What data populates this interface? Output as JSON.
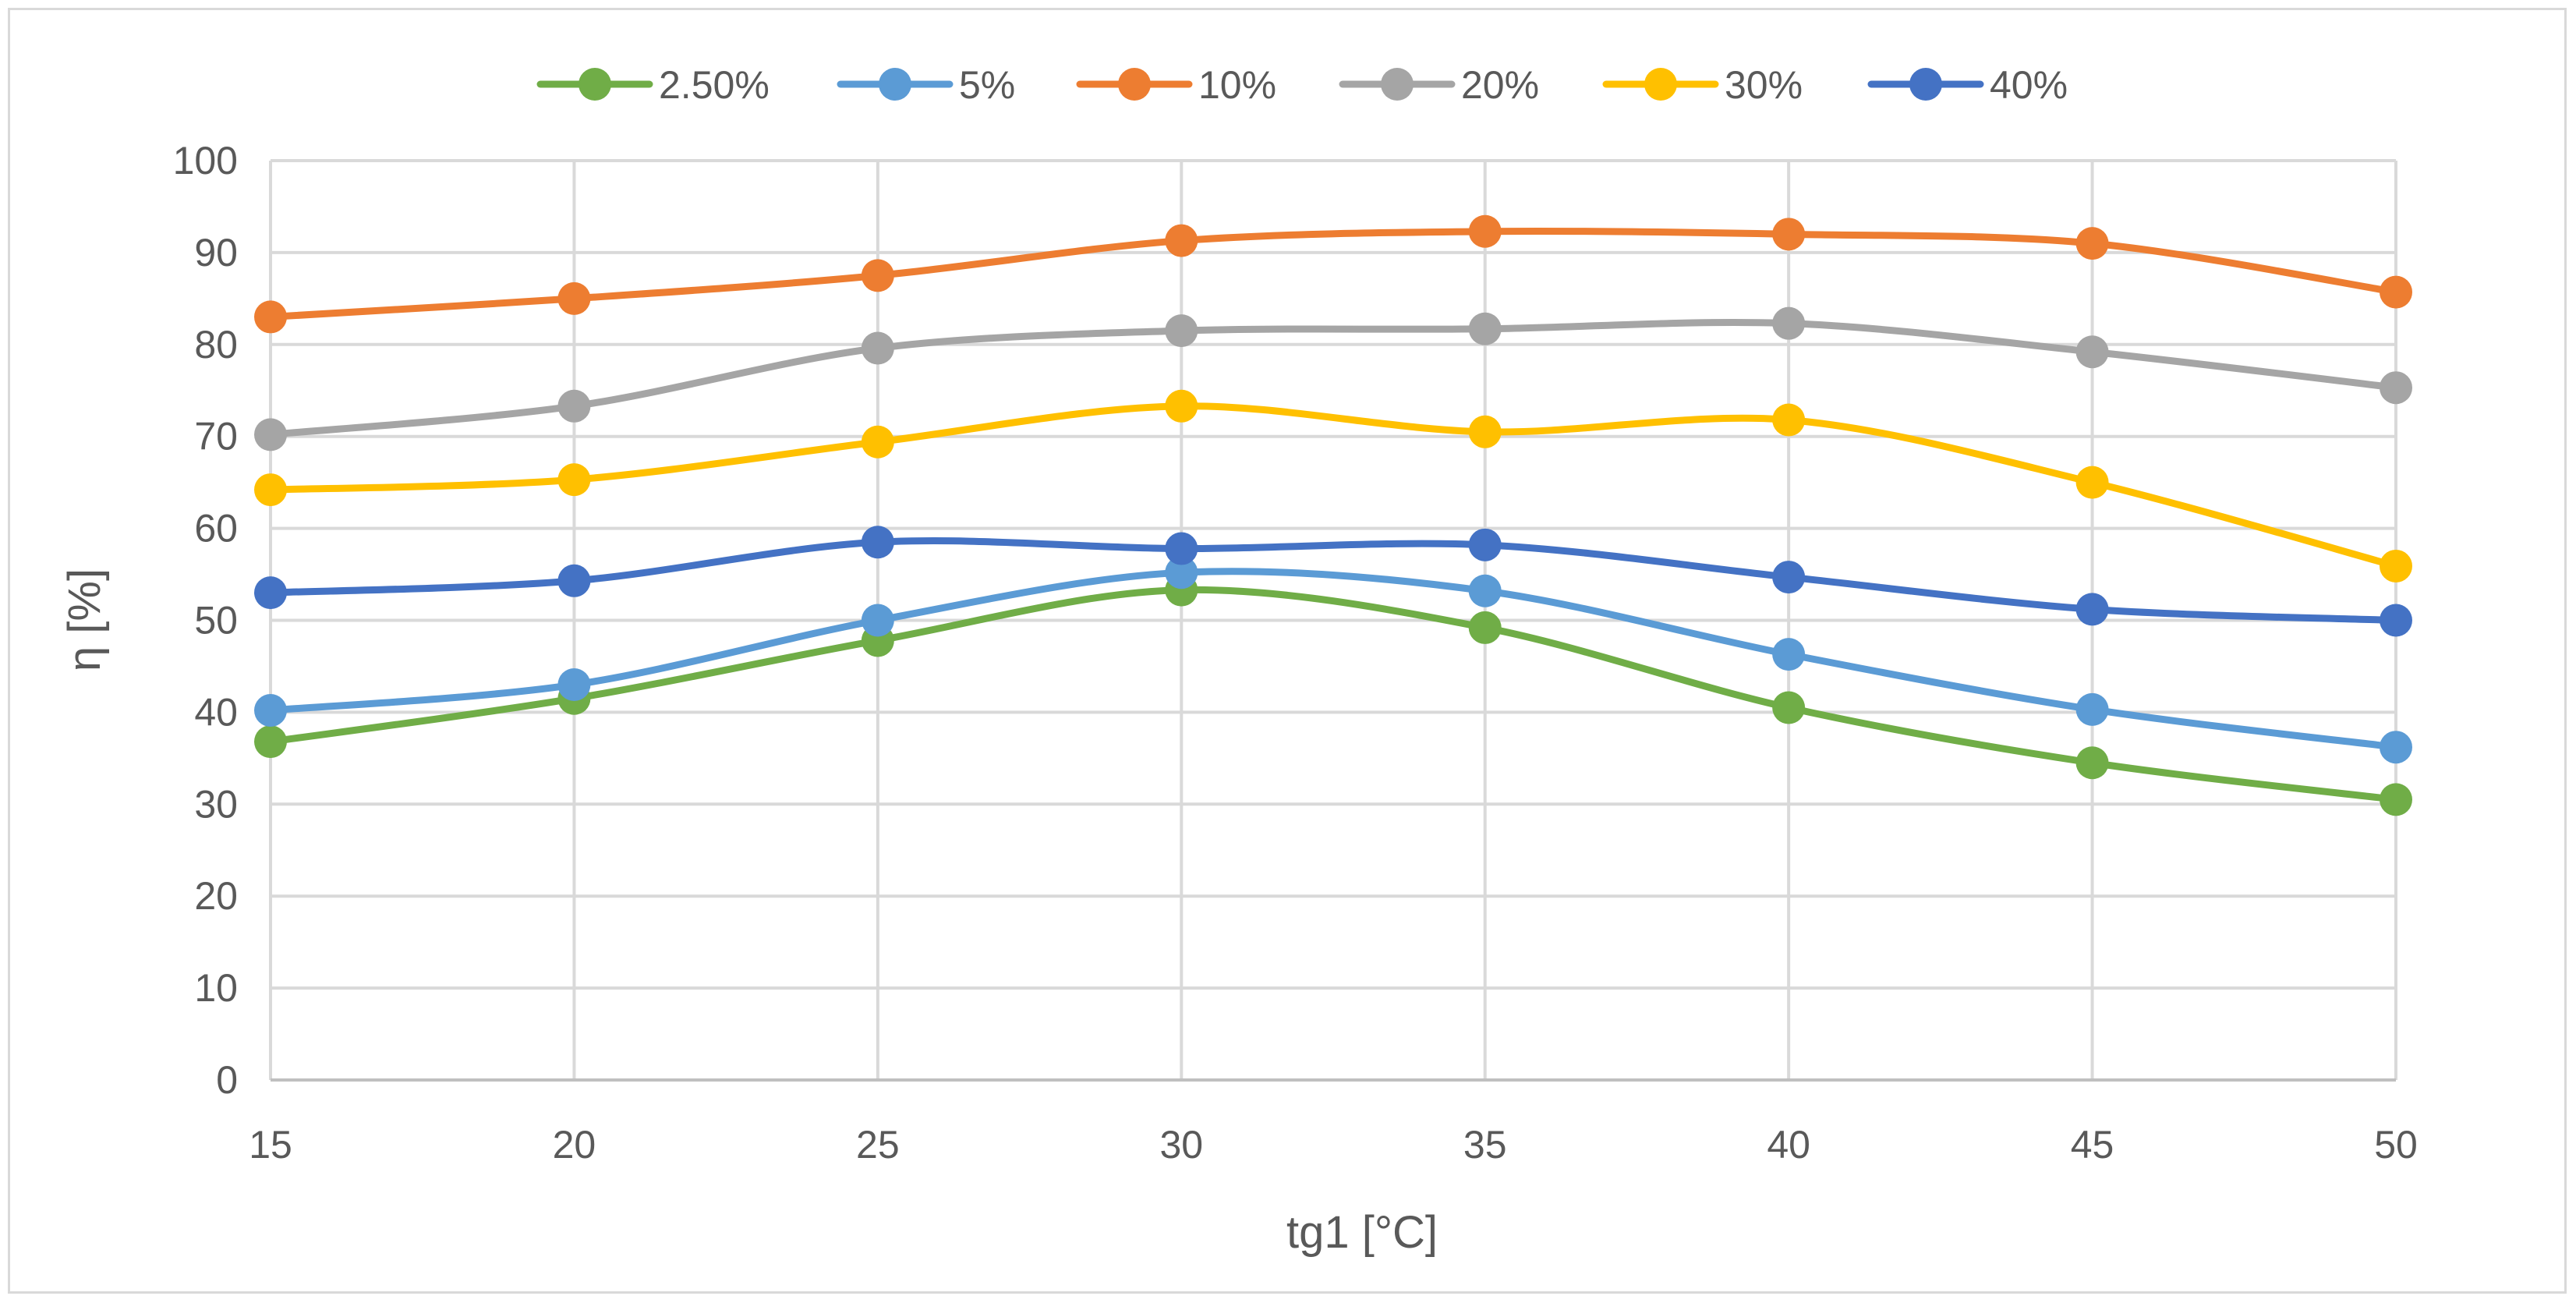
{
  "chart_data": {
    "type": "line",
    "title": "",
    "xlabel": "tg1 [°C]",
    "ylabel": "η [%]",
    "x": [
      15,
      20,
      25,
      30,
      35,
      40,
      45,
      50
    ],
    "xlim": [
      15,
      50
    ],
    "ylim": [
      0,
      100
    ],
    "yticks": [
      0,
      10,
      20,
      30,
      40,
      50,
      60,
      70,
      80,
      90,
      100
    ],
    "grid": true,
    "smooth": true,
    "legend_position": "top",
    "series": [
      {
        "name": "2.50%",
        "color": "#70ad47",
        "values": [
          36.8,
          41.5,
          47.8,
          53.3,
          49.2,
          40.5,
          34.5,
          30.5
        ]
      },
      {
        "name": "5%",
        "color": "#5b9bd5",
        "values": [
          40.2,
          43.0,
          50.0,
          55.2,
          53.2,
          46.3,
          40.3,
          36.2
        ]
      },
      {
        "name": "10%",
        "color": "#ed7d31",
        "values": [
          83.0,
          85.0,
          87.5,
          91.3,
          92.3,
          92.0,
          91.0,
          85.7
        ]
      },
      {
        "name": "20%",
        "color": "#a5a5a5",
        "values": [
          70.2,
          73.3,
          79.6,
          81.5,
          81.7,
          82.3,
          79.2,
          75.3
        ]
      },
      {
        "name": "30%",
        "color": "#ffc000",
        "values": [
          64.2,
          65.3,
          69.4,
          73.3,
          70.5,
          71.8,
          65.0,
          55.9
        ]
      },
      {
        "name": "40%",
        "color": "#4472c4",
        "values": [
          53.0,
          54.3,
          58.5,
          57.8,
          58.2,
          54.7,
          51.2,
          50.0
        ]
      }
    ]
  }
}
